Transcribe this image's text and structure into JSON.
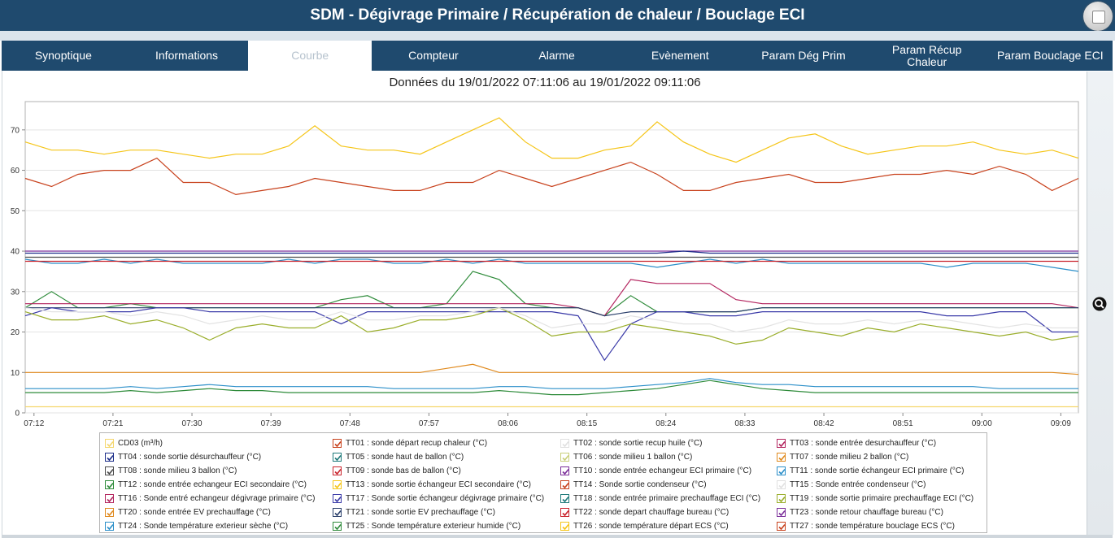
{
  "window": {
    "title": "SDM - Dégivrage Primaire / Récupération de chaleur / Bouclage ECI"
  },
  "tabs": [
    {
      "label": "Synoptique",
      "active": false
    },
    {
      "label": "Informations",
      "active": false
    },
    {
      "label": "Courbe",
      "active": true
    },
    {
      "label": "Compteur",
      "active": false
    },
    {
      "label": "Alarme",
      "active": false
    },
    {
      "label": "Evènement",
      "active": false
    },
    {
      "label": "Param Dég Prim",
      "active": false
    },
    {
      "label": "Param Récup Chaleur",
      "active": false
    },
    {
      "label": "Param Bouclage ECI",
      "active": false
    }
  ],
  "chart_header": "Données du 19/01/2022 07:11:06 au 19/01/2022 09:11:06",
  "chart_data": {
    "type": "line",
    "xlim": [
      "07:11:06",
      "09:11:06"
    ],
    "ylim": [
      0,
      77
    ],
    "x_tick_labels": [
      "07:12",
      "07:21",
      "07:30",
      "07:39",
      "07:48",
      "07:57",
      "08:06",
      "08:15",
      "08:24",
      "08:33",
      "08:42",
      "08:51",
      "09:00",
      "09:09"
    ],
    "x_tick_minutes": [
      1,
      10,
      19,
      28,
      37,
      46,
      55,
      64,
      73,
      82,
      91,
      100,
      109,
      118
    ],
    "y_ticks": [
      0,
      10,
      20,
      30,
      40,
      50,
      60,
      70
    ],
    "grid": true,
    "x_minutes": [
      0,
      3,
      6,
      9,
      12,
      15,
      18,
      21,
      24,
      27,
      30,
      33,
      36,
      39,
      42,
      45,
      48,
      51,
      54,
      57,
      60,
      63,
      66,
      69,
      72,
      75,
      78,
      81,
      84,
      87,
      90,
      93,
      96,
      99,
      102,
      105,
      108,
      111,
      114,
      117,
      120
    ],
    "series": [
      {
        "name": "TT26 : sonde température départ ECS (°C)",
        "color": "#f5c518",
        "values": [
          67,
          65,
          65,
          64,
          65,
          65,
          64,
          63,
          64,
          64,
          66,
          71,
          66,
          65,
          65,
          64,
          67,
          70,
          73,
          67,
          63,
          63,
          65,
          66,
          72,
          67,
          64,
          62,
          65,
          68,
          69,
          66,
          64,
          65,
          66,
          66,
          67,
          65,
          64,
          65,
          63
        ]
      },
      {
        "name": "TT01 : sonde départ recup chaleur (°C)",
        "color": "#c8421d",
        "values": [
          58,
          56,
          59,
          60,
          60,
          63,
          57,
          57,
          54,
          55,
          56,
          58,
          57,
          56,
          55,
          55,
          57,
          57,
          60,
          58,
          56,
          58,
          60,
          62,
          59,
          55,
          55,
          57,
          58,
          59,
          57,
          57,
          58,
          59,
          59,
          60,
          59,
          61,
          59,
          55,
          58
        ]
      },
      {
        "name": "TT10 : sonde entrée echangeur ECI primaire (°C)",
        "color": "#7b2e9a",
        "values": [
          40,
          40,
          40,
          40,
          40,
          40,
          40,
          40,
          40,
          40,
          40,
          40,
          40,
          40,
          40,
          40,
          40,
          40,
          40,
          40,
          40,
          40,
          40,
          40,
          40,
          40,
          40,
          40,
          40,
          40,
          40,
          40,
          40,
          40,
          40,
          40,
          40,
          40,
          40,
          40,
          40
        ]
      },
      {
        "name": "TT04 : sonde sortie désurchauffeur (°C)",
        "color": "#1d2e8a",
        "values": [
          39.5,
          39.5,
          39.5,
          39.5,
          39.5,
          39.5,
          39.5,
          39.5,
          39.5,
          39.5,
          39.5,
          39.5,
          39.5,
          39.5,
          39.5,
          39.5,
          39.5,
          39.5,
          39.5,
          39.5,
          39.5,
          39.5,
          39.5,
          39.5,
          39.5,
          40,
          39.5,
          39.5,
          39.5,
          39.5,
          39.5,
          39.5,
          39.5,
          39.5,
          39.5,
          39.5,
          39.5,
          39.5,
          39.5,
          39.5,
          39.5
        ]
      },
      {
        "name": "TT11 : sonde sortie échangeur ECI primaire (°C)",
        "color": "#2b8fc9",
        "values": [
          38,
          37,
          37,
          38,
          37,
          38,
          37,
          37,
          37,
          37,
          38,
          37,
          38,
          38,
          37,
          37,
          38,
          37,
          38,
          37,
          37,
          37,
          37,
          37,
          36,
          37,
          38,
          37,
          38,
          37,
          37,
          37,
          37,
          37,
          37,
          36,
          37,
          37,
          37,
          36,
          35
        ]
      },
      {
        "name": "TT09 : sonde bas de ballon (°C)",
        "color": "#c9232c",
        "values": [
          37.5,
          37.5,
          37.5,
          37.5,
          37.5,
          37.5,
          37.5,
          37.5,
          37.5,
          37.5,
          37.5,
          37.5,
          37.5,
          37.5,
          37.5,
          37.5,
          37.5,
          37.5,
          37.5,
          37.5,
          37.5,
          37.5,
          37.5,
          37.5,
          37.5,
          37.5,
          37.5,
          37.5,
          37.5,
          37.5,
          37.5,
          37.5,
          37.5,
          37.5,
          37.5,
          37.5,
          37.5,
          37.5,
          37.5,
          37.5,
          37.5
        ]
      },
      {
        "name": "TT08 : sonde milieu 3 ballon (°C)",
        "color": "#4a4a4a",
        "values": [
          38.5,
          38.5,
          38.5,
          38.5,
          38.5,
          38.5,
          38.5,
          38.5,
          38.5,
          38.5,
          38.5,
          38.5,
          38.5,
          38.5,
          38.5,
          38.5,
          38.5,
          38.5,
          38.5,
          38.5,
          38.5,
          38.5,
          38.5,
          38.5,
          38.5,
          38.5,
          38.5,
          38.5,
          38.5,
          38.5,
          38.5,
          38.5,
          38.5,
          38.5,
          38.5,
          38.5,
          38.5,
          38.5,
          38.5,
          38.5,
          38.5
        ]
      },
      {
        "name": "TT24 : Sonde température exterieur sèche (°C)",
        "color": "#2b8fc9",
        "values": [
          6,
          6,
          6,
          6,
          6.5,
          6,
          6.5,
          7,
          6.5,
          6.5,
          6.5,
          6.5,
          6.5,
          6.5,
          6,
          6,
          6,
          6,
          6.5,
          6.5,
          6,
          6,
          6,
          6.5,
          7,
          7.5,
          8.5,
          7.5,
          7,
          7,
          6.5,
          6.5,
          6.5,
          6.5,
          6.5,
          6.5,
          6.5,
          6,
          6,
          6,
          6
        ]
      },
      {
        "name": "TT25 : Sonde température exterieur humide (°C)",
        "color": "#2e8b3a",
        "values": [
          5,
          5,
          5,
          5,
          5.5,
          5,
          5.5,
          6,
          5.5,
          5.5,
          5,
          5,
          5,
          5,
          5,
          5,
          5,
          5,
          5.5,
          5,
          4.5,
          4.5,
          5,
          5.5,
          6,
          7,
          8,
          7,
          6,
          5.5,
          5,
          5,
          5,
          5,
          5,
          5,
          5,
          5,
          5,
          5,
          5
        ]
      },
      {
        "name": "TT20 : sonde entrée EV prechauffage (°C)",
        "color": "#e08a1e",
        "values": [
          10,
          10,
          10,
          10,
          10,
          10,
          10,
          10,
          10,
          10,
          10,
          10,
          10,
          10,
          10,
          10,
          11,
          12,
          10,
          10,
          10,
          10,
          10,
          10,
          10,
          10,
          10,
          10,
          10,
          10,
          10,
          10,
          10,
          10,
          10,
          10,
          10,
          10,
          10,
          10,
          9.5
        ]
      },
      {
        "name": "CD03 (m³/h)",
        "color": "#f5d76e",
        "values": [
          1.5,
          1.5,
          1.5,
          1.5,
          1.5,
          1.5,
          1.5,
          1.5,
          1.5,
          1.5,
          1.5,
          1.5,
          1.5,
          1.5,
          1.5,
          1.5,
          1.5,
          1.5,
          1.5,
          1.5,
          1.5,
          1.5,
          1.5,
          1.5,
          1.5,
          1.5,
          1.5,
          1.5,
          1.5,
          1.5,
          1.5,
          1.5,
          1.5,
          1.5,
          1.5,
          1.5,
          1.5,
          1.5,
          1.5,
          1.5,
          1.5
        ]
      },
      {
        "name": "TT12 : sonde entrée echangeur ECI secondaire (°C)",
        "color": "#2e8b3a",
        "values": [
          26,
          30,
          26,
          26,
          27,
          26,
          26,
          26,
          26,
          26,
          26,
          26,
          28,
          29,
          26,
          26,
          27,
          35,
          33,
          27,
          26,
          26,
          24,
          29,
          25,
          25,
          25,
          25,
          26,
          26,
          26,
          26,
          26,
          26,
          26,
          26,
          26,
          26,
          26,
          26,
          26
        ]
      },
      {
        "name": "TT16 : Sonde entré echangeur dégivrage primaire (°C)",
        "color": "#b3245e",
        "values": [
          27,
          27,
          27,
          27,
          27,
          27,
          27,
          27,
          27,
          27,
          27,
          27,
          27,
          27,
          27,
          27,
          27,
          27,
          27,
          27,
          27,
          26,
          24,
          33,
          32,
          32,
          32,
          28,
          27,
          27,
          27,
          27,
          27,
          27,
          27,
          27,
          27,
          27,
          27,
          27,
          26
        ]
      },
      {
        "name": "TT21 : sonde sortie EV prechauffage (°C)",
        "color": "#2a3f6b",
        "values": [
          26,
          26,
          26,
          26,
          26,
          26,
          26,
          26,
          26,
          26,
          26,
          26,
          26,
          26,
          26,
          26,
          26,
          26,
          26,
          26,
          26,
          26,
          24,
          25,
          25,
          25,
          25,
          25,
          26,
          26,
          26,
          26,
          26,
          26,
          26,
          26,
          26,
          26,
          26,
          26,
          26
        ]
      },
      {
        "name": "TT17 : Sonde sortie échangeur dégivrage primaire (°C)",
        "color": "#3a3aa8",
        "values": [
          24,
          26,
          25,
          25,
          25,
          26,
          26,
          25,
          25,
          25,
          25,
          25,
          22,
          25,
          25,
          25,
          25,
          25,
          25,
          25,
          25,
          24,
          13,
          22,
          25,
          25,
          24,
          24,
          25,
          25,
          25,
          25,
          25,
          25,
          25,
          24,
          24,
          25,
          25,
          20,
          20
        ]
      },
      {
        "name": "TT19 : sonde sortie primaire prechauffage ECI (°C)",
        "color": "#9aae2b",
        "values": [
          25,
          23,
          23,
          24,
          22,
          23,
          21,
          18,
          21,
          22,
          21,
          21,
          24,
          20,
          21,
          23,
          23,
          24,
          26,
          23,
          19,
          20,
          20,
          22,
          21,
          20,
          19,
          17,
          18,
          21,
          20,
          19,
          21,
          20,
          22,
          21,
          20,
          19,
          20,
          18,
          19
        ]
      },
      {
        "name": "TT18 : sonde entrée primaire prechauffage ECI (°C)",
        "color": "#e3e3e3",
        "values": [
          26,
          25,
          25,
          25,
          24,
          25,
          24,
          22,
          23,
          24,
          23,
          23,
          25,
          23,
          23,
          24,
          24,
          25,
          26,
          24,
          21,
          22,
          22,
          24,
          23,
          22,
          22,
          20,
          21,
          23,
          22,
          22,
          23,
          22,
          23,
          23,
          22,
          21,
          22,
          21,
          21
        ]
      }
    ]
  },
  "legend": [
    {
      "label": "CD03 (m³/h)",
      "color": "#f5d76e"
    },
    {
      "label": "TT01 : sonde départ recup chaleur (°C)",
      "color": "#c8421d"
    },
    {
      "label": "TT02 : sonde sortie recup huile  (°C)",
      "color": "#e0e0e0"
    },
    {
      "label": "TT03 : sonde entrée desurchauffeur (°C)",
      "color": "#b3245e"
    },
    {
      "label": "TT04 : sonde sortie désurchauffeur (°C)",
      "color": "#1d2e8a"
    },
    {
      "label": "TT05 : sonde haut de ballon (°C)",
      "color": "#1e7a7a"
    },
    {
      "label": "TT06 : sonde milieu 1 ballon (°C)",
      "color": "#c9cf7a"
    },
    {
      "label": "TT07 : sonde milieu 2 ballon (°C)",
      "color": "#e08a1e"
    },
    {
      "label": "TT08 : sonde milieu 3 ballon (°C)",
      "color": "#4a4a4a"
    },
    {
      "label": "TT09 :  sonde bas de ballon (°C)",
      "color": "#c9232c"
    },
    {
      "label": "TT10 : sonde entrée echangeur ECI primaire (°C)",
      "color": "#7b2e9a"
    },
    {
      "label": "TT11 : sonde sortie échangeur ECI primaire (°C)",
      "color": "#2b8fc9"
    },
    {
      "label": "TT12 : sonde entrée echangeur ECI secondaire (°C)",
      "color": "#2e8b3a"
    },
    {
      "label": "TT13 : sonde sortie échangeur ECI secondaire (°C)",
      "color": "#f5c518"
    },
    {
      "label": "TT14 : Sonde sortie condenseur (°C)",
      "color": "#c8421d"
    },
    {
      "label": "TT15 : Sonde entrée condenseur (°C)",
      "color": "#e0e0e0"
    },
    {
      "label": "TT16 : Sonde entré echangeur dégivrage primaire (°C)",
      "color": "#b3245e"
    },
    {
      "label": "TT17 : Sonde sortie échangeur dégivrage primaire (°C)",
      "color": "#3a3aa8"
    },
    {
      "label": "TT18 : sonde entrée primaire prechauffage ECI (°C)",
      "color": "#1e7a7a"
    },
    {
      "label": "TT19 : sonde sortie primaire prechauffage ECI (°C)",
      "color": "#9aae2b"
    },
    {
      "label": "TT20 : sonde entrée EV prechauffage  (°C)",
      "color": "#e08a1e"
    },
    {
      "label": "TT21 : sonde sortie EV prechauffage  (°C)",
      "color": "#2a3f6b"
    },
    {
      "label": "TT22 : sonde depart chauffage bureau (°C)",
      "color": "#c9232c"
    },
    {
      "label": "TT23 : sonde retour chauffage bureau (°C)",
      "color": "#7b2e9a"
    },
    {
      "label": "TT24 : Sonde température exterieur sèche (°C)",
      "color": "#2b8fc9"
    },
    {
      "label": "TT25 : Sonde température exterieur humide (°C)",
      "color": "#2e8b3a"
    },
    {
      "label": "TT26 : sonde température départ ECS (°C)",
      "color": "#f5c518"
    },
    {
      "label": "TT27 : sonde température bouclage ECS (°C)",
      "color": "#c8421d"
    }
  ],
  "icons": {
    "window_button": "restore-icon",
    "zoom": "magnifier-icon"
  }
}
